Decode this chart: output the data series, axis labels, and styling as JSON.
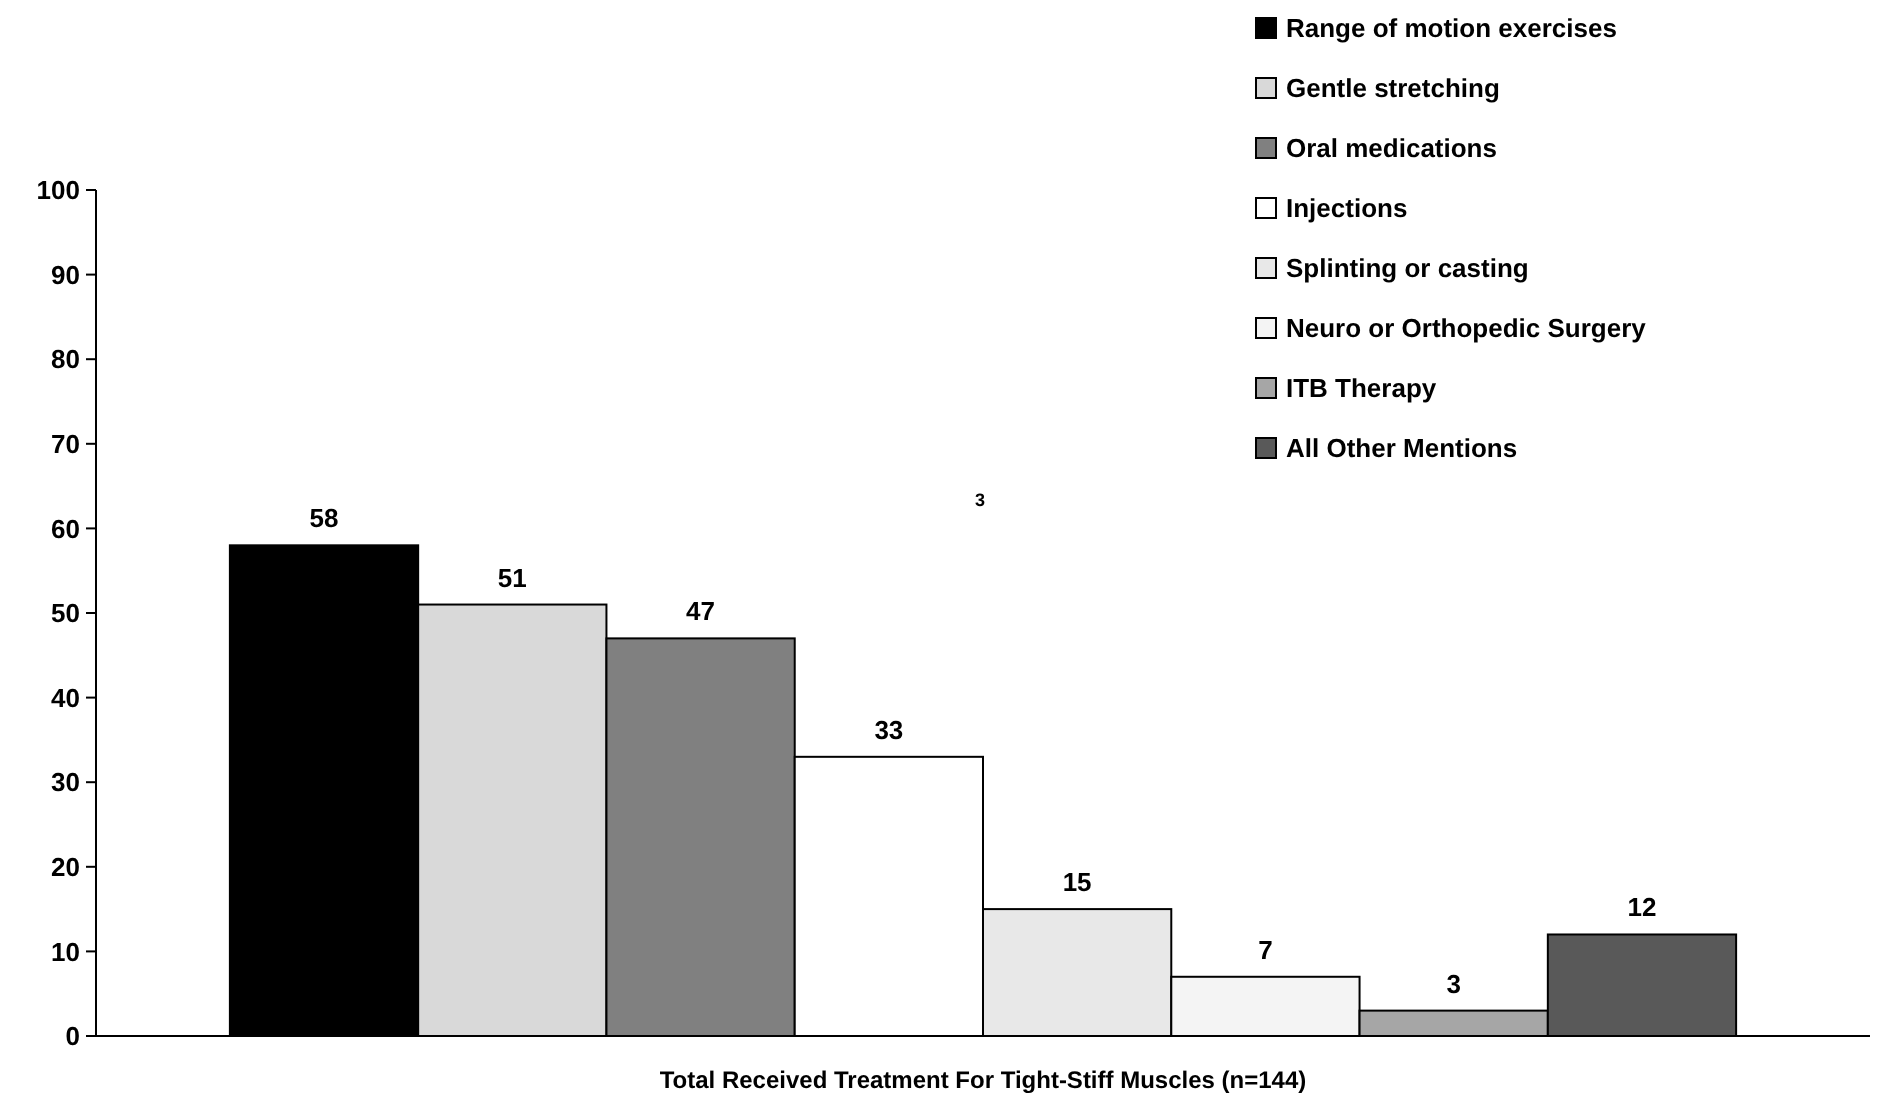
{
  "chart_data": {
    "type": "bar",
    "xlabel": "Total Received Treatment For Tight-Stiff Muscles (n=144)",
    "categories": [
      null
    ],
    "ylim": [
      0,
      100
    ],
    "yticks": [
      0,
      10,
      20,
      30,
      40,
      50,
      60,
      70,
      80,
      90,
      100
    ],
    "data_labels": true,
    "legend": "top right",
    "grid": false,
    "annotations": [
      "3"
    ],
    "series": [
      {
        "name": "Range of motion exercises",
        "color": "#000000",
        "values": [
          58
        ]
      },
      {
        "name": "Gentle stretching",
        "color": "#d9d9d9",
        "values": [
          51
        ]
      },
      {
        "name": "Oral medications",
        "color": "#808080",
        "values": [
          47
        ]
      },
      {
        "name": "Injections",
        "color": "#ffffff",
        "values": [
          33
        ]
      },
      {
        "name": "Splinting or casting",
        "color": "#e8e8e8",
        "values": [
          15
        ]
      },
      {
        "name": "Neuro or Orthopedic Surgery",
        "color": "#f4f4f4",
        "values": [
          7
        ]
      },
      {
        "name": "ITB Therapy",
        "color": "#a6a6a6",
        "values": [
          3
        ]
      },
      {
        "name": "All Other Mentions",
        "color": "#595959",
        "values": [
          12
        ]
      }
    ]
  }
}
